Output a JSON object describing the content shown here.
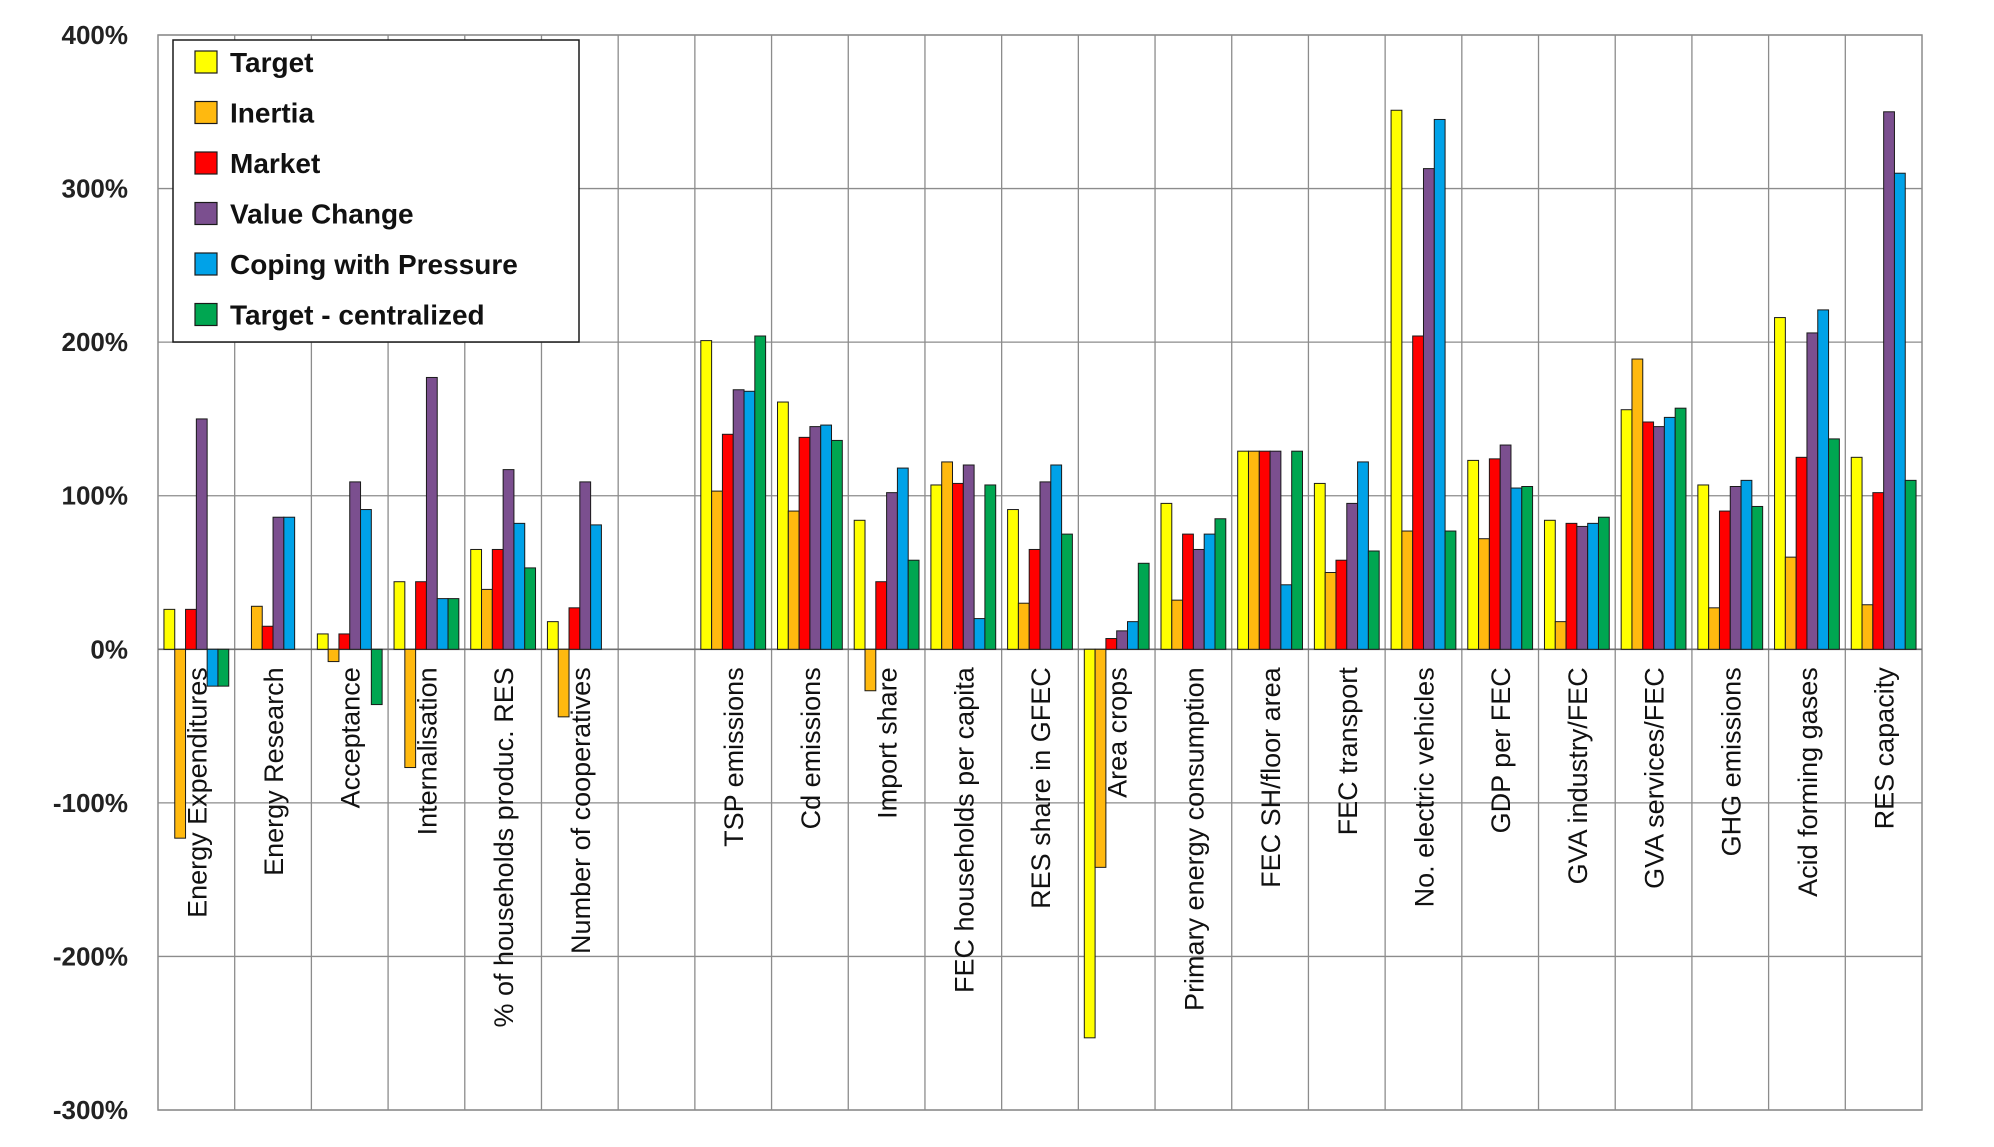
{
  "chart_data": {
    "type": "bar",
    "title": "",
    "xlabel": "",
    "ylabel": "",
    "ylim": [
      -300,
      400
    ],
    "yticks": [
      -300,
      -200,
      -100,
      0,
      100,
      200,
      300,
      400
    ],
    "ytick_labels": [
      "-300%",
      "-200%",
      "-100%",
      "0%",
      "100%",
      "200%",
      "300%",
      "400%"
    ],
    "grid": true,
    "legend_position": "top-left",
    "categories": [
      "Energy Expenditures",
      "Energy Research",
      "Acceptance",
      "Internalisation",
      "% of households produc. RES",
      "Number of cooperatives",
      "",
      "TSP emissions",
      "Cd emissions",
      "Import share",
      "FEC households per capita",
      "RES share in GFEC",
      "Area crops",
      "Primary energy consumption",
      "FEC SH/floor area",
      "FEC transport",
      "No. electric vehicles",
      "GDP per FEC",
      "GVA industry/FEC",
      "GVA services/FEC",
      "GHG emissions",
      "Acid forming gases",
      "RES capacity"
    ],
    "series": [
      {
        "name": "Target",
        "color": "#FFFF00",
        "values": [
          26,
          null,
          10,
          44,
          65,
          18,
          null,
          201,
          161,
          84,
          107,
          91,
          -253,
          95,
          129,
          108,
          351,
          123,
          84,
          156,
          107,
          216,
          125
        ]
      },
      {
        "name": "Inertia",
        "color": "#FFB90F",
        "values": [
          -123,
          28,
          -8,
          -77,
          39,
          -44,
          null,
          103,
          90,
          -27,
          122,
          30,
          -142,
          32,
          129,
          50,
          77,
          72,
          18,
          189,
          27,
          60,
          29
        ]
      },
      {
        "name": "Market",
        "color": "#FF0000",
        "values": [
          26,
          15,
          10,
          44,
          65,
          27,
          null,
          140,
          138,
          44,
          108,
          65,
          7,
          75,
          129,
          58,
          204,
          124,
          82,
          148,
          90,
          125,
          102
        ]
      },
      {
        "name": "Value Change",
        "color": "#7B4F8F",
        "values": [
          150,
          86,
          109,
          177,
          117,
          109,
          null,
          169,
          145,
          102,
          120,
          109,
          12,
          65,
          129,
          95,
          313,
          133,
          80,
          145,
          106,
          206,
          350
        ]
      },
      {
        "name": "Coping with Pressure",
        "color": "#00A2E8",
        "values": [
          -24,
          86,
          91,
          33,
          82,
          81,
          null,
          168,
          146,
          118,
          20,
          120,
          18,
          75,
          42,
          122,
          345,
          105,
          82,
          151,
          110,
          221,
          310
        ]
      },
      {
        "name": "Target - centralized",
        "color": "#00A651",
        "values": [
          -24,
          null,
          -36,
          33,
          53,
          null,
          null,
          204,
          136,
          58,
          107,
          75,
          56,
          85,
          129,
          64,
          77,
          106,
          86,
          157,
          93,
          137,
          110
        ]
      }
    ]
  }
}
